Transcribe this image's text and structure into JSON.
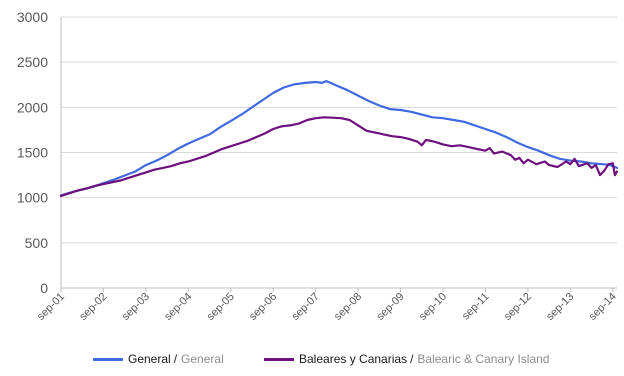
{
  "chart_data": {
    "type": "line",
    "ylim": [
      0,
      3000
    ],
    "yticks": [
      0,
      500,
      1000,
      1500,
      2000,
      2500,
      3000
    ],
    "ytick_labels": [
      "0",
      "500",
      "1000",
      "1500",
      "2000",
      "2500",
      "3000"
    ],
    "x_tick_labels": [
      "sep-01",
      "sep-02",
      "sep-03",
      "sep-04",
      "sep-05",
      "sep-06",
      "sep-07",
      "sep-08",
      "sep-09",
      "sep-10",
      "sep-11",
      "sep-12",
      "sep-13",
      "sep-14"
    ],
    "x_years": [
      2001,
      2002,
      2003,
      2004,
      2005,
      2006,
      2007,
      2008,
      2009,
      2010,
      2011,
      2012,
      2013,
      2014
    ],
    "x_range_years": [
      2001.0,
      2014.1
    ],
    "grid": "horizontal",
    "legend_position": "bottom",
    "series": [
      {
        "name": "General",
        "name_en": "General",
        "color": "#4169e1",
        "points": [
          [
            2001.0,
            1025
          ],
          [
            2001.25,
            1060
          ],
          [
            2001.5,
            1090
          ],
          [
            2001.75,
            1120
          ],
          [
            2002.0,
            1160
          ],
          [
            2002.25,
            1200
          ],
          [
            2002.5,
            1245
          ],
          [
            2002.75,
            1290
          ],
          [
            2003.0,
            1360
          ],
          [
            2003.25,
            1410
          ],
          [
            2003.5,
            1470
          ],
          [
            2003.75,
            1540
          ],
          [
            2004.0,
            1600
          ],
          [
            2004.25,
            1650
          ],
          [
            2004.5,
            1700
          ],
          [
            2004.75,
            1780
          ],
          [
            2005.0,
            1850
          ],
          [
            2005.25,
            1920
          ],
          [
            2005.5,
            2000
          ],
          [
            2005.75,
            2080
          ],
          [
            2006.0,
            2160
          ],
          [
            2006.25,
            2220
          ],
          [
            2006.5,
            2255
          ],
          [
            2006.75,
            2270
          ],
          [
            2007.0,
            2280
          ],
          [
            2007.15,
            2270
          ],
          [
            2007.25,
            2290
          ],
          [
            2007.4,
            2260
          ],
          [
            2007.5,
            2240
          ],
          [
            2007.75,
            2190
          ],
          [
            2008.0,
            2130
          ],
          [
            2008.25,
            2070
          ],
          [
            2008.5,
            2020
          ],
          [
            2008.75,
            1980
          ],
          [
            2009.0,
            1970
          ],
          [
            2009.25,
            1950
          ],
          [
            2009.5,
            1920
          ],
          [
            2009.75,
            1890
          ],
          [
            2010.0,
            1880
          ],
          [
            2010.25,
            1860
          ],
          [
            2010.5,
            1840
          ],
          [
            2010.75,
            1800
          ],
          [
            2011.0,
            1760
          ],
          [
            2011.25,
            1720
          ],
          [
            2011.5,
            1670
          ],
          [
            2011.75,
            1610
          ],
          [
            2012.0,
            1560
          ],
          [
            2012.25,
            1520
          ],
          [
            2012.5,
            1470
          ],
          [
            2012.75,
            1430
          ],
          [
            2013.0,
            1410
          ],
          [
            2013.25,
            1400
          ],
          [
            2013.5,
            1380
          ],
          [
            2013.75,
            1370
          ],
          [
            2013.9,
            1365
          ],
          [
            2014.0,
            1350
          ],
          [
            2014.1,
            1330
          ]
        ]
      },
      {
        "name": "Baleares y Canarias",
        "name_en": "Balearic & Canary Island",
        "color": "#6d0f7d",
        "points": [
          [
            2001.0,
            1020
          ],
          [
            2001.2,
            1050
          ],
          [
            2001.4,
            1080
          ],
          [
            2001.6,
            1100
          ],
          [
            2001.8,
            1130
          ],
          [
            2002.0,
            1150
          ],
          [
            2002.2,
            1170
          ],
          [
            2002.4,
            1190
          ],
          [
            2002.6,
            1220
          ],
          [
            2002.8,
            1250
          ],
          [
            2003.0,
            1280
          ],
          [
            2003.2,
            1310
          ],
          [
            2003.4,
            1330
          ],
          [
            2003.6,
            1350
          ],
          [
            2003.8,
            1380
          ],
          [
            2004.0,
            1400
          ],
          [
            2004.2,
            1430
          ],
          [
            2004.4,
            1460
          ],
          [
            2004.6,
            1500
          ],
          [
            2004.8,
            1540
          ],
          [
            2005.0,
            1570
          ],
          [
            2005.2,
            1600
          ],
          [
            2005.4,
            1630
          ],
          [
            2005.6,
            1670
          ],
          [
            2005.8,
            1710
          ],
          [
            2006.0,
            1760
          ],
          [
            2006.2,
            1790
          ],
          [
            2006.4,
            1800
          ],
          [
            2006.6,
            1820
          ],
          [
            2006.8,
            1860
          ],
          [
            2007.0,
            1880
          ],
          [
            2007.2,
            1890
          ],
          [
            2007.4,
            1885
          ],
          [
            2007.6,
            1880
          ],
          [
            2007.8,
            1860
          ],
          [
            2008.0,
            1800
          ],
          [
            2008.2,
            1740
          ],
          [
            2008.4,
            1720
          ],
          [
            2008.6,
            1700
          ],
          [
            2008.8,
            1680
          ],
          [
            2009.0,
            1670
          ],
          [
            2009.2,
            1650
          ],
          [
            2009.4,
            1620
          ],
          [
            2009.5,
            1580
          ],
          [
            2009.6,
            1640
          ],
          [
            2009.8,
            1620
          ],
          [
            2010.0,
            1590
          ],
          [
            2010.2,
            1570
          ],
          [
            2010.4,
            1580
          ],
          [
            2010.6,
            1560
          ],
          [
            2010.8,
            1540
          ],
          [
            2011.0,
            1520
          ],
          [
            2011.1,
            1550
          ],
          [
            2011.2,
            1490
          ],
          [
            2011.4,
            1510
          ],
          [
            2011.6,
            1470
          ],
          [
            2011.7,
            1420
          ],
          [
            2011.8,
            1440
          ],
          [
            2011.9,
            1380
          ],
          [
            2012.0,
            1420
          ],
          [
            2012.2,
            1370
          ],
          [
            2012.4,
            1400
          ],
          [
            2012.5,
            1360
          ],
          [
            2012.7,
            1340
          ],
          [
            2012.9,
            1400
          ],
          [
            2013.0,
            1370
          ],
          [
            2013.1,
            1430
          ],
          [
            2013.2,
            1350
          ],
          [
            2013.4,
            1380
          ],
          [
            2013.5,
            1330
          ],
          [
            2013.6,
            1360
          ],
          [
            2013.7,
            1250
          ],
          [
            2013.8,
            1300
          ],
          [
            2013.9,
            1370
          ],
          [
            2014.0,
            1380
          ],
          [
            2014.05,
            1250
          ],
          [
            2014.1,
            1290
          ]
        ]
      }
    ]
  },
  "legend": [
    {
      "label": "General",
      "separator": "/",
      "label_en": "General",
      "color": "#4169e1"
    },
    {
      "label": "Baleares y Canarias",
      "separator": "/",
      "label_en": "Balearic & Canary Island",
      "color": "#6d0f7d"
    }
  ]
}
